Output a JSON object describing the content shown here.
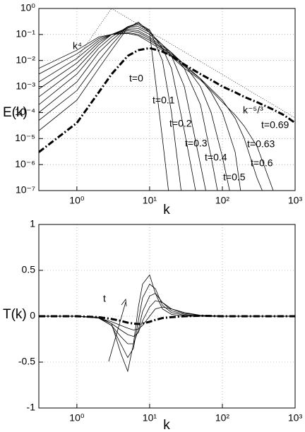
{
  "chart_data": [
    {
      "type": "line",
      "xlabel": "k",
      "ylabel": "E(k)",
      "xscale": "log",
      "yscale": "log",
      "grid": true,
      "xlim": [
        0.3,
        1000
      ],
      "xticks": [
        {
          "value": 1,
          "label": "10⁰"
        },
        {
          "value": 10,
          "label": "10¹"
        },
        {
          "value": 100,
          "label": "10²"
        },
        {
          "value": 1000,
          "label": "10³"
        }
      ],
      "ylim": [
        1e-07,
        1
      ],
      "yticks": [
        {
          "value": 1e-07,
          "label": "10⁻⁷"
        },
        {
          "value": 1e-06,
          "label": "10⁻⁶"
        },
        {
          "value": 1e-05,
          "label": "10⁻⁵"
        },
        {
          "value": 0.0001,
          "label": "10⁻⁴"
        },
        {
          "value": 0.001,
          "label": "10⁻³"
        },
        {
          "value": 0.01,
          "label": "10⁻²"
        },
        {
          "value": 0.1,
          "label": "10⁻¹"
        },
        {
          "value": 1,
          "label": "10⁰"
        }
      ],
      "x": [
        0.3,
        1,
        2,
        3,
        5,
        7,
        10,
        15,
        20,
        30,
        50,
        70,
        100,
        150,
        200,
        300,
        500,
        700,
        1000
      ],
      "series": [
        {
          "name": "t=0",
          "color": "#000000",
          "style": "solid",
          "values": [
            2e-05,
            0.0003,
            0.005,
            0.025,
            0.18,
            0.3,
            0.12,
            1e-05,
            1e-08,
            null,
            null,
            null,
            null,
            null,
            null,
            null,
            null,
            null,
            null
          ]
        },
        {
          "name": "t=0.1",
          "color": "#000000",
          "style": "solid",
          "values": [
            5e-05,
            0.0007,
            0.01,
            0.04,
            0.2,
            0.27,
            0.15,
            0.01,
            0.0001,
            1e-08,
            null,
            null,
            null,
            null,
            null,
            null,
            null,
            null,
            null
          ]
        },
        {
          "name": "t=0.2",
          "color": "#000000",
          "style": "solid",
          "values": [
            0.0001,
            0.0015,
            0.02,
            0.06,
            0.2,
            0.24,
            0.14,
            0.03,
            0.005,
            2e-05,
            1e-08,
            null,
            null,
            null,
            null,
            null,
            null,
            null,
            null
          ]
        },
        {
          "name": "t=0.3",
          "color": "#000000",
          "style": "solid",
          "values": [
            0.0002,
            0.003,
            0.03,
            0.08,
            0.2,
            0.2,
            0.12,
            0.04,
            0.015,
            0.001,
            1e-06,
            1e-08,
            null,
            null,
            null,
            null,
            null,
            null,
            null
          ]
        },
        {
          "name": "t=0.4",
          "color": "#000000",
          "style": "solid",
          "values": [
            0.0004,
            0.005,
            0.04,
            0.1,
            0.18,
            0.17,
            0.1,
            0.04,
            0.02,
            0.005,
            0.0002,
            2e-06,
            1e-08,
            null,
            null,
            null,
            null,
            null,
            null
          ]
        },
        {
          "name": "t=0.5",
          "color": "#000000",
          "style": "solid",
          "values": [
            0.0008,
            0.008,
            0.05,
            0.1,
            0.16,
            0.14,
            0.08,
            0.035,
            0.02,
            0.007,
            0.001,
            0.0001,
            2e-06,
            1e-08,
            null,
            null,
            null,
            null,
            null
          ]
        },
        {
          "name": "t=0.6",
          "color": "#000000",
          "style": "solid",
          "values": [
            0.0015,
            0.012,
            0.06,
            0.1,
            0.14,
            0.12,
            0.07,
            0.03,
            0.018,
            0.007,
            0.002,
            0.0006,
            0.0001,
            3e-06,
            1e-08,
            null,
            null,
            null,
            null
          ]
        },
        {
          "name": "t=0.63",
          "color": "#000000",
          "style": "solid",
          "values": [
            0.003,
            0.018,
            0.07,
            0.1,
            0.12,
            0.1,
            0.06,
            0.028,
            0.016,
            0.006,
            0.002,
            0.0008,
            0.0003,
            6e-05,
            1e-05,
            3e-07,
            1e-08,
            null,
            null
          ]
        },
        {
          "name": "t=0.69",
          "color": "#000000",
          "style": "solid",
          "values": [
            0.005,
            0.025,
            0.08,
            0.1,
            0.11,
            0.09,
            0.05,
            0.025,
            0.014,
            0.005,
            0.0018,
            0.0007,
            0.00025,
            8e-05,
            3e-05,
            5e-06,
            1e-07,
            1e-08,
            null
          ]
        },
        {
          "color": "#000000",
          "style": "dashdot",
          "values": [
            3e-06,
            4e-05,
            0.0006,
            0.003,
            0.015,
            0.025,
            0.03,
            0.022,
            0.015,
            0.007,
            0.003,
            0.0018,
            0.001,
            0.0006,
            0.0004,
            0.00025,
            0.00013,
            8e-05,
            4e-05
          ]
        },
        {
          "name": "k⁴",
          "color": "#000000",
          "style": "dotted",
          "values": [
            null,
            0.012,
            0.2,
            1,
            null,
            null,
            null,
            null,
            null,
            null,
            null,
            null,
            null,
            null,
            null,
            null,
            null,
            null,
            null
          ]
        },
        {
          "name": "k⁻⁵/³",
          "color": "#000000",
          "style": "dotted",
          "values": [
            null,
            null,
            null,
            1,
            0.43,
            0.24,
            0.12,
            0.068,
            0.042,
            0.0215,
            0.0092,
            0.00525,
            0.0029,
            0.00147,
            0.00091,
            0.00046,
            0.0002,
            0.000113,
            6.2e-05
          ]
        }
      ]
    },
    {
      "type": "line",
      "xlabel": "k",
      "ylabel": "T(k)",
      "xscale": "log",
      "grid": true,
      "xlim": [
        0.3,
        1000
      ],
      "xticks": [
        {
          "value": 1,
          "label": "10⁰"
        },
        {
          "value": 10,
          "label": "10¹"
        },
        {
          "value": 100,
          "label": "10²"
        },
        {
          "value": 1000,
          "label": "10³"
        }
      ],
      "ylim": [
        -1,
        1
      ],
      "yticks": [
        -1,
        -0.5,
        0,
        0.5,
        1
      ],
      "annotations": [
        "t"
      ],
      "x": [
        0.3,
        1,
        2,
        3,
        4,
        5,
        6,
        7,
        8,
        10,
        12,
        15,
        20,
        30,
        50,
        100,
        200,
        1000
      ],
      "series": [
        {
          "color": "#000000",
          "style": "solid",
          "values": [
            0,
            0,
            -0.01,
            -0.08,
            -0.4,
            -0.6,
            -0.3,
            0.1,
            0.35,
            0.45,
            0.25,
            0.08,
            0.02,
            0,
            0,
            0,
            0,
            0
          ]
        },
        {
          "color": "#000000",
          "style": "solid",
          "values": [
            0,
            0,
            -0.02,
            -0.1,
            -0.3,
            -0.45,
            -0.35,
            -0.05,
            0.2,
            0.35,
            0.3,
            0.12,
            0.04,
            0.01,
            0,
            0,
            0,
            0
          ]
        },
        {
          "color": "#000000",
          "style": "solid",
          "values": [
            0,
            0,
            -0.02,
            -0.1,
            -0.22,
            -0.3,
            -0.3,
            -0.15,
            0.05,
            0.22,
            0.25,
            0.15,
            0.06,
            0.02,
            0,
            0,
            0,
            0
          ]
        },
        {
          "color": "#000000",
          "style": "solid",
          "values": [
            0,
            0,
            -0.02,
            -0.08,
            -0.15,
            -0.2,
            -0.22,
            -0.18,
            -0.05,
            0.1,
            0.17,
            0.15,
            0.08,
            0.03,
            0.01,
            0,
            0,
            0
          ]
        },
        {
          "color": "#000000",
          "style": "solid",
          "values": [
            0,
            0,
            -0.02,
            -0.06,
            -0.1,
            -0.13,
            -0.15,
            -0.14,
            -0.1,
            0,
            0.08,
            0.1,
            0.08,
            0.04,
            0.01,
            0,
            0,
            0
          ]
        },
        {
          "color": "#000000",
          "style": "dashdot",
          "values": [
            0,
            0,
            -0.01,
            -0.03,
            -0.05,
            -0.07,
            -0.08,
            -0.085,
            -0.08,
            -0.06,
            -0.04,
            -0.02,
            -0.01,
            0,
            0.005,
            0,
            0,
            0
          ]
        }
      ]
    }
  ]
}
